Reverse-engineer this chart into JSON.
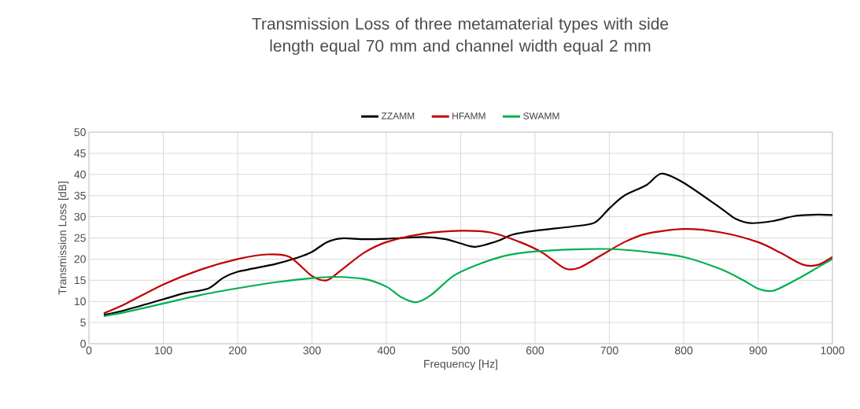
{
  "chart_data": {
    "type": "line",
    "title": "Transmission Loss of three metamaterial types with side length equal 70 mm and channel width equal 2 mm",
    "xlabel": "Frequency [Hz]",
    "ylabel": "Transmission Loss [dB]",
    "xlim": [
      0,
      1000
    ],
    "xticks": [
      0,
      100,
      200,
      300,
      400,
      500,
      600,
      700,
      800,
      900,
      1000
    ],
    "ylim": [
      0,
      50
    ],
    "yticks": [
      0,
      5,
      10,
      15,
      20,
      25,
      30,
      35,
      40,
      45,
      50
    ],
    "grid": true,
    "legend": "top",
    "marker": "none",
    "line_style": "solid",
    "series": [
      {
        "name": "ZZAMM",
        "color": "#000000",
        "x": [
          20,
          50,
          100,
          130,
          160,
          180,
          200,
          250,
          280,
          300,
          320,
          340,
          370,
          400,
          450,
          480,
          500,
          520,
          550,
          570,
          600,
          650,
          680,
          700,
          720,
          750,
          770,
          800,
          850,
          870,
          890,
          920,
          950,
          980,
          1000
        ],
        "values": [
          6.8,
          8,
          10.5,
          12,
          13,
          15.5,
          17,
          18.8,
          20.3,
          21.7,
          24,
          24.9,
          24.7,
          24.8,
          25.2,
          24.7,
          23.7,
          22.9,
          24.3,
          25.8,
          26.7,
          27.7,
          28.6,
          32,
          35,
          37.5,
          40.2,
          38,
          32,
          29.5,
          28.5,
          29,
          30.2,
          30.5,
          30.4
        ]
      },
      {
        "name": "HFAMM",
        "color": "#c00000",
        "x": [
          20,
          50,
          100,
          150,
          200,
          240,
          270,
          300,
          320,
          340,
          370,
          400,
          450,
          500,
          540,
          580,
          610,
          640,
          660,
          690,
          720,
          750,
          800,
          850,
          900,
          930,
          960,
          980,
          1000
        ],
        "values": [
          7.2,
          9.5,
          14,
          17.5,
          20,
          21.1,
          20.5,
          16,
          15,
          17.5,
          21.5,
          24,
          26,
          26.7,
          26.3,
          24,
          21.5,
          17.8,
          18,
          21,
          24,
          26,
          27.1,
          26.3,
          24,
          21.5,
          18.7,
          18.6,
          20.5
        ]
      },
      {
        "name": "SWAMM",
        "color": "#00b050",
        "x": [
          20,
          50,
          100,
          150,
          200,
          250,
          300,
          330,
          370,
          400,
          420,
          440,
          460,
          490,
          520,
          560,
          600,
          650,
          700,
          750,
          800,
          850,
          880,
          900,
          920,
          950,
          980,
          1000
        ],
        "values": [
          6.5,
          7.5,
          9.5,
          11.5,
          13.1,
          14.5,
          15.5,
          15.8,
          15.3,
          13.5,
          11,
          9.8,
          11.5,
          16,
          18.5,
          20.8,
          21.8,
          22.3,
          22.4,
          21.7,
          20.5,
          17.6,
          15,
          13,
          12.5,
          15,
          18,
          20
        ]
      }
    ]
  }
}
